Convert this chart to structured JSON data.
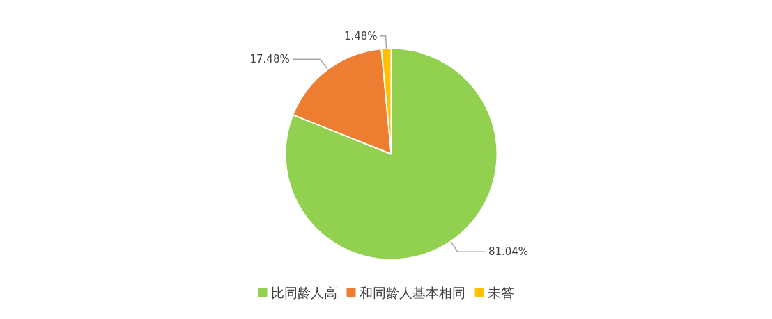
{
  "chart_data": {
    "type": "pie",
    "categories": [
      "比同龄人高",
      "和同龄人基本相同",
      "未答"
    ],
    "values": [
      81.04,
      17.48,
      1.48
    ],
    "colors": [
      "#92d050",
      "#ed7d31",
      "#ffc000"
    ],
    "value_labels": [
      "81.04%",
      "17.48%",
      "1.48%"
    ],
    "legend": "bottom"
  }
}
